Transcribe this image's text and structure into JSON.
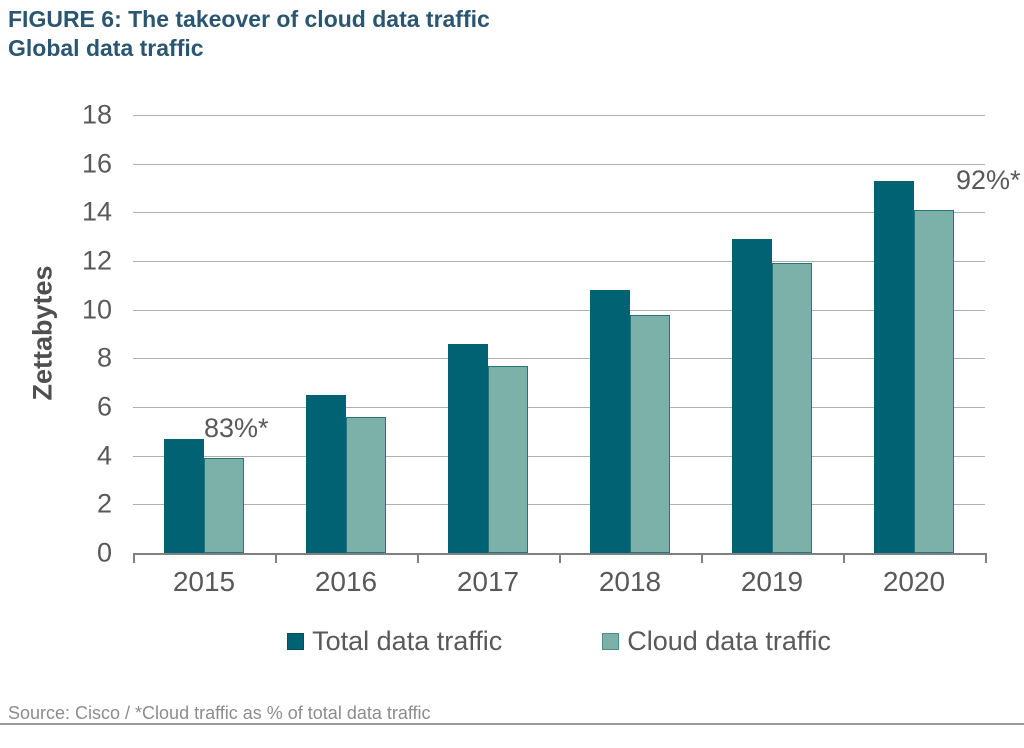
{
  "header": {
    "title_line1": "FIGURE 6: The takeover of cloud data traffic",
    "title_line2": "Global data traffic"
  },
  "chart_data": {
    "type": "bar",
    "title": "FIGURE 6: The takeover of cloud data traffic — Global data traffic",
    "xlabel": "",
    "ylabel": "Zettabytes",
    "categories": [
      "2015",
      "2016",
      "2017",
      "2018",
      "2019",
      "2020"
    ],
    "series": [
      {
        "name": "Total data traffic",
        "color": "#006272",
        "values": [
          4.7,
          6.5,
          8.6,
          10.8,
          12.9,
          15.3
        ]
      },
      {
        "name": "Cloud data traffic",
        "color": "#7cb1a9",
        "values": [
          3.9,
          5.6,
          7.7,
          9.8,
          11.9,
          14.1
        ]
      }
    ],
    "ylim": [
      0,
      18
    ],
    "ytick_step": 2,
    "grid": true,
    "legend_position": "bottom",
    "annotations": [
      {
        "text": "83%*",
        "category_index": 0,
        "placement": "above-second-bar"
      },
      {
        "text": "92%*",
        "category_index": 5,
        "placement": "right-of-first-bar"
      }
    ]
  },
  "footer": {
    "source": "Source: Cisco / *Cloud traffic as % of total data traffic"
  },
  "colors": {
    "title": "#2b5671",
    "axis_text": "#595959",
    "gridline": "#b0b0b0",
    "axis_line": "#808080",
    "total_bar": "#006272",
    "cloud_bar": "#7cb1a9",
    "cloud_bar_border": "#26747a",
    "source_text": "#8c8c8c"
  }
}
